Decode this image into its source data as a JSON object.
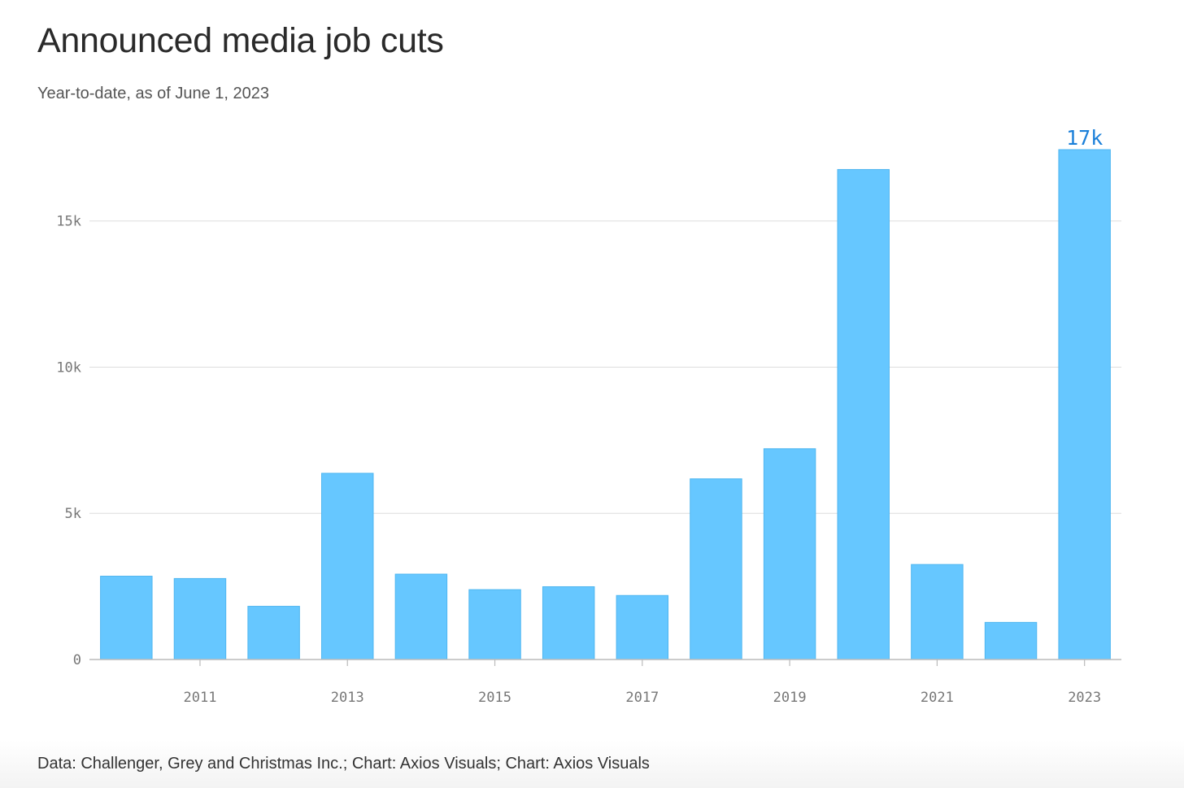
{
  "title": "Announced media job cuts",
  "subtitle": "Year-to-date, as of June 1, 2023",
  "source": "Data: Challenger, Grey and Christmas Inc.; Chart: Axios Visuals; Chart: Axios Visuals",
  "colors": {
    "bar": "#66c7ff",
    "bar_stroke": "#4fb6f0",
    "label": "#1a7fd9",
    "grid": "#dddddd",
    "axis": "#bbbbbb"
  },
  "chart_data": {
    "type": "bar",
    "categories": [
      "2010",
      "2011",
      "2012",
      "2013",
      "2014",
      "2015",
      "2016",
      "2017",
      "2018",
      "2019",
      "2020",
      "2021",
      "2022",
      "2023"
    ],
    "values": [
      2850,
      2770,
      1820,
      6370,
      2920,
      2390,
      2490,
      2190,
      6180,
      7210,
      16760,
      3250,
      1270,
      17440
    ],
    "x_tick_labels": [
      "2011",
      "2013",
      "2015",
      "2017",
      "2019",
      "2021",
      "2023"
    ],
    "y_ticks": [
      0,
      5000,
      10000,
      15000
    ],
    "y_tick_labels": [
      "0",
      "5k",
      "10k",
      "15k"
    ],
    "ylim": [
      0,
      17440
    ],
    "grid": true,
    "annotation": {
      "category": "2023",
      "text": "17k"
    }
  }
}
